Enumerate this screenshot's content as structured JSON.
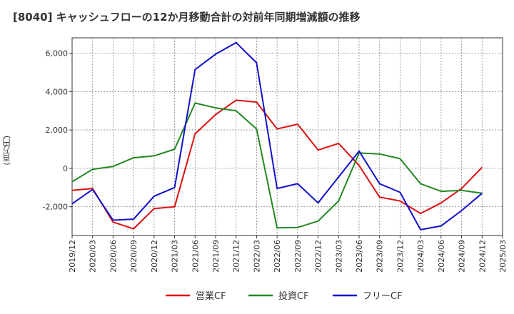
{
  "chart_data": {
    "type": "line",
    "title": "[8040]  キャッシュフローの12か月移動合計の対前年同期増減額の推移",
    "ylabel": "(百万円)",
    "ylim": [
      -3500,
      6800
    ],
    "yticks": [
      -2000,
      0,
      2000,
      4000,
      6000
    ],
    "ytick_labels": [
      "-2,000",
      "0",
      "2,000",
      "4,000",
      "6,000"
    ],
    "x": [
      "2019/12",
      "2020/03",
      "2020/06",
      "2020/09",
      "2020/12",
      "2021/03",
      "2021/06",
      "2021/09",
      "2021/12",
      "2022/03",
      "2022/06",
      "2022/09",
      "2022/12",
      "2023/03",
      "2023/06",
      "2023/09",
      "2023/12",
      "2024/03",
      "2024/06",
      "2024/09",
      "2024/12",
      "2025/03"
    ],
    "grid": true,
    "legend_position": "bottom",
    "series": [
      {
        "name": "営業CF",
        "color": "#dd1111",
        "values": [
          -1150,
          -1050,
          -2800,
          -3150,
          -2100,
          -2000,
          1800,
          2800,
          3550,
          3450,
          2050,
          2300,
          950,
          1300,
          150,
          -1500,
          -1700,
          -2350,
          -1800,
          -1050,
          50,
          null
        ]
      },
      {
        "name": "投資CF",
        "color": "#228822",
        "values": [
          -700,
          -50,
          100,
          550,
          650,
          1000,
          3400,
          3150,
          3000,
          2050,
          -3100,
          -3080,
          -2750,
          -1700,
          800,
          750,
          500,
          -800,
          -1200,
          -1150,
          -1300,
          null
        ]
      },
      {
        "name": "フリーCF",
        "color": "#1111cc",
        "values": [
          -1850,
          -1100,
          -2700,
          -2650,
          -1450,
          -1000,
          5150,
          5950,
          6550,
          5500,
          -1050,
          -800,
          -1800,
          -450,
          900,
          -800,
          -1250,
          -3200,
          -3000,
          -2200,
          -1300,
          null
        ]
      }
    ]
  }
}
